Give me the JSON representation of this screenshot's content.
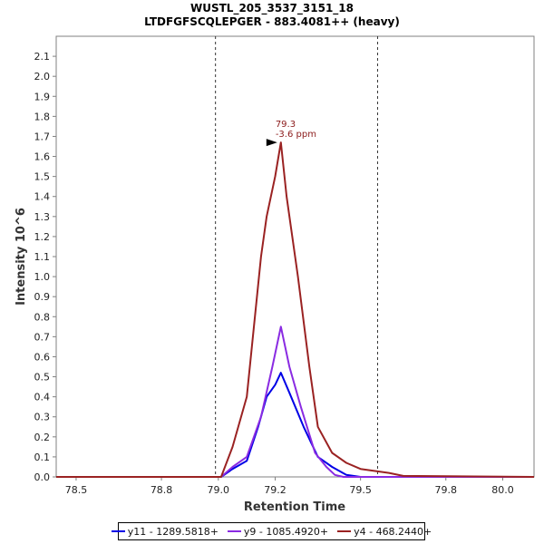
{
  "chart_data": {
    "type": "line",
    "title": "WUSTL_205_3537_3151_18",
    "subtitle": "LTDFGFSCQLEPGER - 883.4081++ (heavy)",
    "xlabel": "Retention Time",
    "ylabel": "Intensity 10^6",
    "xlim": [
      78.43,
      80.11
    ],
    "ylim": [
      0,
      2.2
    ],
    "x_ticks": [
      "78.5",
      "78.8",
      "79.0",
      "79.2",
      "79.5",
      "79.8",
      "80.0"
    ],
    "y_ticks": [
      "0.0",
      "0.1",
      "0.2",
      "0.3",
      "0.4",
      "0.5",
      "0.6",
      "0.7",
      "0.8",
      "0.9",
      "1.0",
      "1.1",
      "1.2",
      "1.3",
      "1.4",
      "1.5",
      "1.6",
      "1.7",
      "1.8",
      "1.9",
      "2.0",
      "2.1"
    ],
    "boundary_lines": [
      78.99,
      79.56
    ],
    "grid": false,
    "legend_position": "bottom",
    "series": [
      {
        "name": "y11 - 1289.5818+",
        "color": "#0000e6",
        "points": [
          [
            78.43,
            0
          ],
          [
            79.01,
            0
          ],
          [
            79.05,
            0.04
          ],
          [
            79.1,
            0.08
          ],
          [
            79.14,
            0.25
          ],
          [
            79.17,
            0.4
          ],
          [
            79.2,
            0.46
          ],
          [
            79.22,
            0.52
          ],
          [
            79.25,
            0.42
          ],
          [
            79.3,
            0.25
          ],
          [
            79.35,
            0.1
          ],
          [
            79.4,
            0.05
          ],
          [
            79.45,
            0.01
          ],
          [
            79.5,
            0
          ],
          [
            80.11,
            0
          ]
        ]
      },
      {
        "name": "y9 - 1085.4920+",
        "color": "#8a2be2",
        "points": [
          [
            78.43,
            0
          ],
          [
            79.01,
            0
          ],
          [
            79.05,
            0.05
          ],
          [
            79.1,
            0.1
          ],
          [
            79.15,
            0.3
          ],
          [
            79.19,
            0.55
          ],
          [
            79.22,
            0.75
          ],
          [
            79.25,
            0.55
          ],
          [
            79.29,
            0.35
          ],
          [
            79.34,
            0.12
          ],
          [
            79.38,
            0.05
          ],
          [
            79.41,
            0.01
          ],
          [
            79.44,
            0
          ],
          [
            80.11,
            0
          ]
        ]
      },
      {
        "name": "y4 - 468.2440+",
        "color": "#9a2222",
        "points": [
          [
            78.43,
            0
          ],
          [
            79.01,
            0
          ],
          [
            79.05,
            0.15
          ],
          [
            79.1,
            0.4
          ],
          [
            79.15,
            1.1
          ],
          [
            79.17,
            1.3
          ],
          [
            79.2,
            1.5
          ],
          [
            79.22,
            1.67
          ],
          [
            79.24,
            1.4
          ],
          [
            79.28,
            1.0
          ],
          [
            79.32,
            0.55
          ],
          [
            79.35,
            0.25
          ],
          [
            79.4,
            0.12
          ],
          [
            79.45,
            0.07
          ],
          [
            79.5,
            0.04
          ],
          [
            79.6,
            0.02
          ],
          [
            79.65,
            0.005
          ],
          [
            80.11,
            0
          ]
        ]
      }
    ],
    "annotations": [
      {
        "x": 79.22,
        "y": 1.67,
        "lines": [
          "79.3",
          "-3.6 ppm"
        ],
        "color": "#8b1a1a"
      }
    ]
  }
}
